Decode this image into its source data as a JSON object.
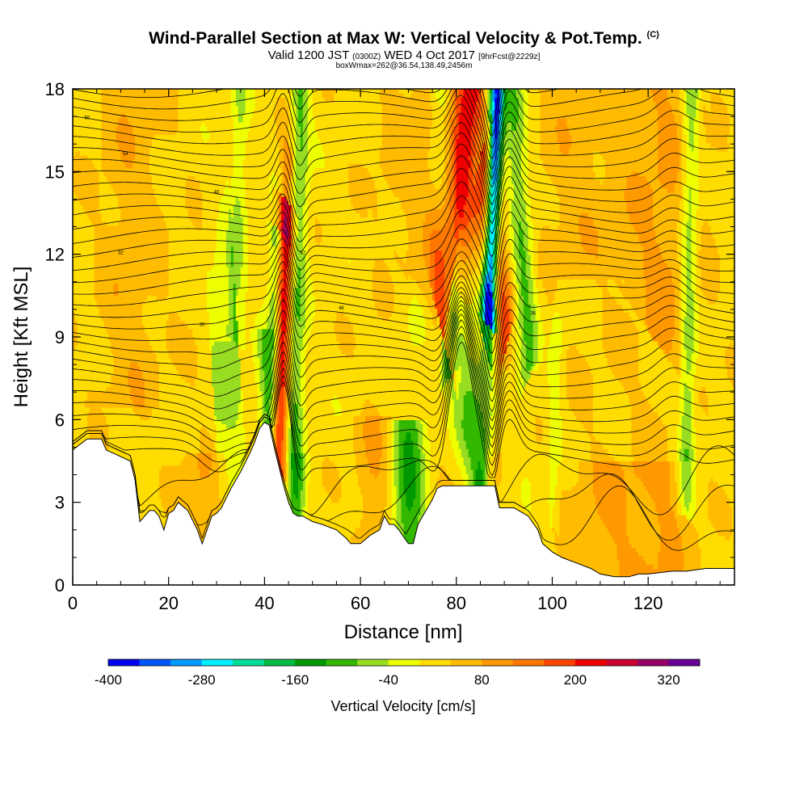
{
  "title": {
    "main": "Wind-Parallel Section at Max W: Vertical Velocity & Pot.Temp.",
    "copyright": "(C)",
    "valid_prefix": "Valid 1200 JST",
    "valid_utc": "(0300Z)",
    "valid_date": "WED 4 Oct 2017",
    "forecast": "[9hrFcst@2229z]",
    "box_info": "boxWmax=262@36.54,138.49,2456m"
  },
  "colors": {
    "terrain": "#ffffff",
    "contour": "#000000",
    "frame": "#000000"
  },
  "chart_data": {
    "type": "heatmap",
    "xlabel": "Distance [nm]",
    "ylabel": "Height [Kft MSL]",
    "xlim": [
      0,
      138
    ],
    "ylim": [
      0,
      18
    ],
    "xticks": [
      0,
      20,
      40,
      60,
      80,
      100,
      120
    ],
    "yticks": [
      0,
      3,
      6,
      9,
      12,
      15,
      18
    ],
    "colorbar": {
      "label": "Vertical Velocity [cm/s]",
      "tick_values": [
        -400,
        -280,
        -160,
        -40,
        80,
        200,
        320
      ],
      "colors": [
        "#0000ee",
        "#0055ff",
        "#0099ff",
        "#00eeff",
        "#00dd99",
        "#00bb44",
        "#009900",
        "#33b800",
        "#99dd22",
        "#eeff00",
        "#ffdd00",
        "#ffbb00",
        "#ff9900",
        "#ff7700",
        "#ff4400",
        "#ee0000",
        "#cc0033",
        "#990066",
        "#660099"
      ]
    },
    "terrain_profile": {
      "x": [
        0,
        3,
        5,
        6,
        7,
        12,
        13,
        14,
        16,
        17,
        18,
        19,
        20,
        21,
        22,
        24,
        26,
        27,
        28,
        29,
        30,
        31,
        33,
        35,
        37,
        38,
        39,
        40,
        41,
        42,
        43,
        44,
        45,
        46,
        47,
        48,
        50,
        52,
        55,
        57,
        58,
        59,
        60,
        62,
        64,
        65,
        66,
        67,
        68,
        70,
        71,
        72,
        73,
        74,
        75,
        76,
        77,
        78,
        80,
        82,
        85,
        88,
        89,
        90,
        92,
        95,
        97,
        98,
        100,
        102,
        105,
        108,
        110,
        113,
        116,
        118,
        120,
        125,
        128,
        132,
        136,
        138
      ],
      "height": [
        4.9,
        5.3,
        5.3,
        5.3,
        4.9,
        4.5,
        3.8,
        2.3,
        2.7,
        2.7,
        2.5,
        2.0,
        2.6,
        2.7,
        3.0,
        2.7,
        2.0,
        1.5,
        2.0,
        2.5,
        2.6,
        2.8,
        3.5,
        4.1,
        4.8,
        5.2,
        5.7,
        5.9,
        5.8,
        5.0,
        4.3,
        3.6,
        3.0,
        2.6,
        2.5,
        2.5,
        2.3,
        2.2,
        2.0,
        1.7,
        1.5,
        1.5,
        1.5,
        1.8,
        2.0,
        2.5,
        2.2,
        2.2,
        2.0,
        1.5,
        1.5,
        2.2,
        2.5,
        2.8,
        3.1,
        3.5,
        3.6,
        3.6,
        3.6,
        3.6,
        3.6,
        3.6,
        2.8,
        2.8,
        2.8,
        2.5,
        2.0,
        1.5,
        1.2,
        1.0,
        0.8,
        0.6,
        0.4,
        0.3,
        0.3,
        0.4,
        0.4,
        0.5,
        0.5,
        0.6,
        0.6,
        0.6
      ]
    },
    "updraft_plumes": [
      {
        "x0": 43,
        "y0": 5.2,
        "x1": 44.5,
        "y1": 12.8,
        "width": 1.2,
        "peak": 230
      },
      {
        "x0": 44.5,
        "y0": 12.8,
        "x1": 45.2,
        "y1": 15.5,
        "width": 1.0,
        "peak": 80
      },
      {
        "x0": 77.5,
        "y0": 10.5,
        "x1": 83,
        "y1": 18,
        "width": 2.0,
        "peak": 210
      },
      {
        "x0": 90,
        "y0": 9.5,
        "x1": 86,
        "y1": 15,
        "width": 1.4,
        "peak": 150
      },
      {
        "x0": 82,
        "y0": 3.5,
        "x1": 79,
        "y1": 7.5,
        "width": 1.6,
        "peak": 60
      },
      {
        "x0": 27,
        "y0": 2.0,
        "x1": 27,
        "y1": 4.5,
        "width": 3.0,
        "peak": 60
      },
      {
        "x0": 63,
        "y0": 1.6,
        "x1": 63,
        "y1": 5.5,
        "width": 3.0,
        "peak": 55
      },
      {
        "x0": 112,
        "y0": 0.5,
        "x1": 112,
        "y1": 4.0,
        "width": 6.0,
        "peak": 50
      },
      {
        "x0": 124,
        "y0": 0.5,
        "x1": 124,
        "y1": 4.0,
        "width": 5.0,
        "peak": 45
      },
      {
        "x0": 12,
        "y0": 8,
        "x1": 12,
        "y1": 18,
        "width": 5.0,
        "peak": 45
      },
      {
        "x0": 70,
        "y0": 12,
        "x1": 72,
        "y1": 18,
        "width": 5.0,
        "peak": 40
      },
      {
        "x0": 104,
        "y0": 12,
        "x1": 104,
        "y1": 18,
        "width": 6.0,
        "peak": 40
      },
      {
        "x0": 122,
        "y0": 10,
        "x1": 124,
        "y1": 18,
        "width": 6.0,
        "peak": 55
      }
    ],
    "downdraft_plumes": [
      {
        "x0": 87,
        "y0": 10.5,
        "x1": 88.5,
        "y1": 18,
        "width": 1.0,
        "peak": -420
      },
      {
        "x0": 86,
        "y0": 9,
        "x1": 87,
        "y1": 10.5,
        "width": 1.0,
        "peak": -150
      },
      {
        "x0": 46,
        "y0": 4.5,
        "x1": 47.5,
        "y1": 18,
        "width": 1.4,
        "peak": -110
      },
      {
        "x0": 41.5,
        "y0": 5.5,
        "x1": 42.5,
        "y1": 12,
        "width": 1.0,
        "peak": -130
      },
      {
        "x0": 70,
        "y0": 1.7,
        "x1": 70,
        "y1": 5.5,
        "width": 2.6,
        "peak": -150
      },
      {
        "x0": 85,
        "y0": 3.8,
        "x1": 79,
        "y1": 9,
        "width": 1.5,
        "peak": -160
      },
      {
        "x0": 79,
        "y0": 9,
        "x1": 77,
        "y1": 18,
        "width": 1.6,
        "peak": -90
      },
      {
        "x0": 95,
        "y0": 9,
        "x1": 91.5,
        "y1": 18,
        "width": 1.5,
        "peak": -110
      },
      {
        "x0": 128,
        "y0": 4.5,
        "x1": 129,
        "y1": 18,
        "width": 1.3,
        "peak": -110
      },
      {
        "x0": 30,
        "y0": 7,
        "x1": 34,
        "y1": 8.5,
        "width": 2.0,
        "peak": -70
      },
      {
        "x0": 40,
        "y0": 3.5,
        "x1": 40,
        "y1": 8.5,
        "width": 1.2,
        "peak": -80
      },
      {
        "x0": 34,
        "y0": 10,
        "x1": 35,
        "y1": 18,
        "width": 1.2,
        "peak": -60
      },
      {
        "x0": 47,
        "y0": 2.2,
        "x1": 47,
        "y1": 4.5,
        "width": 1.2,
        "peak": -60
      },
      {
        "x0": 100,
        "y0": 3.0,
        "x1": 101,
        "y1": 9,
        "width": 1.0,
        "peak": -50
      }
    ],
    "theta_contours": {
      "count": 34,
      "spacing_kft": 0.42,
      "contour_labels": [
        "60",
        "54",
        "40",
        "42",
        "48",
        "32",
        "30",
        "36"
      ]
    }
  }
}
